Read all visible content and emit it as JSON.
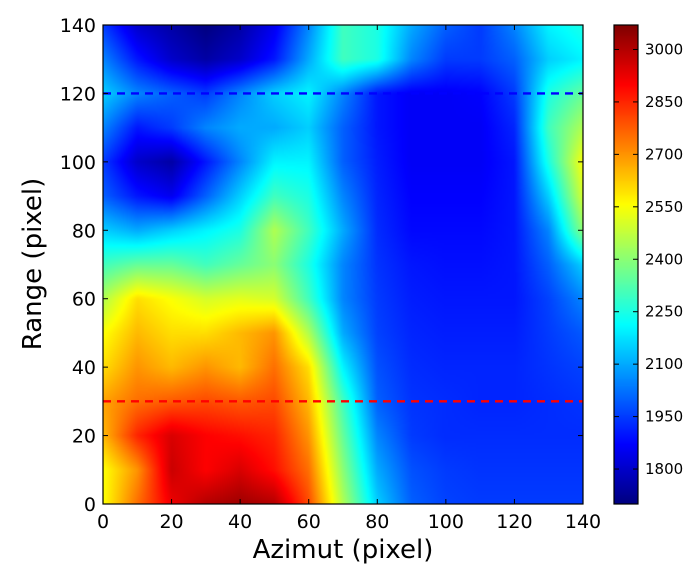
{
  "chart_data": {
    "type": "heatmap",
    "title": "",
    "xlabel": "Azimut (pixel)",
    "ylabel": "Range (pixel)",
    "xlim": [
      0,
      140
    ],
    "ylim": [
      0,
      140
    ],
    "xticks": [
      "0",
      "20",
      "40",
      "60",
      "80",
      "100",
      "120",
      "140"
    ],
    "yticks": [
      "0",
      "20",
      "40",
      "60",
      "80",
      "100",
      "120",
      "140"
    ],
    "colormap": "jet",
    "color_range": [
      1700,
      3070
    ],
    "colorbar_ticks": [
      "1800",
      "1950",
      "2100",
      "2250",
      "2400",
      "2550",
      "2700",
      "2850",
      "3000"
    ],
    "grid": false,
    "reference_lines": [
      {
        "y": 120,
        "color": "#0000ff",
        "style": "dashed"
      },
      {
        "y": 30,
        "color": "#ff0000",
        "style": "dashed"
      }
    ],
    "grid_x": [
      0,
      10,
      20,
      30,
      40,
      50,
      60,
      70,
      80,
      90,
      100,
      110,
      120,
      130,
      140
    ],
    "grid_y": [
      0,
      10,
      20,
      30,
      40,
      50,
      60,
      70,
      80,
      90,
      100,
      110,
      120,
      130,
      140
    ],
    "values": [
      [
        2550,
        2750,
        2920,
        3000,
        3030,
        3000,
        2800,
        2450,
        2150,
        2000,
        1960,
        1950,
        1950,
        1950,
        1950
      ],
      [
        2550,
        2700,
        2970,
        2900,
        2950,
        2880,
        2750,
        2400,
        2100,
        1980,
        1950,
        1940,
        1940,
        1940,
        1940
      ],
      [
        2650,
        2850,
        2950,
        2900,
        2880,
        2850,
        2700,
        2350,
        2050,
        1950,
        1930,
        1930,
        1930,
        1930,
        1930
      ],
      [
        2680,
        2750,
        2780,
        2800,
        2780,
        2800,
        2650,
        2300,
        2000,
        1940,
        1930,
        1920,
        1920,
        1930,
        1940
      ],
      [
        2600,
        2700,
        2650,
        2700,
        2650,
        2750,
        2600,
        2200,
        1980,
        1930,
        1920,
        1920,
        1920,
        1940,
        1960
      ],
      [
        2550,
        2650,
        2600,
        2600,
        2650,
        2700,
        2450,
        2100,
        1960,
        1920,
        1910,
        1910,
        1910,
        1950,
        1990
      ],
      [
        2450,
        2600,
        2550,
        2500,
        2520,
        2500,
        2300,
        2050,
        1950,
        1910,
        1900,
        1900,
        1900,
        1960,
        2050
      ],
      [
        2300,
        2350,
        2350,
        2300,
        2350,
        2400,
        2250,
        2050,
        1940,
        1900,
        1890,
        1890,
        1900,
        2000,
        2150
      ],
      [
        2150,
        2100,
        2150,
        2200,
        2250,
        2450,
        2300,
        2100,
        1930,
        1880,
        1880,
        1880,
        1900,
        2050,
        2400
      ],
      [
        2000,
        1900,
        1850,
        2000,
        2150,
        2300,
        2250,
        2050,
        1920,
        1870,
        1870,
        1870,
        1900,
        2150,
        2500
      ],
      [
        1950,
        1800,
        1750,
        1900,
        2050,
        2200,
        2200,
        2000,
        1910,
        1860,
        1860,
        1860,
        1900,
        2250,
        2550
      ],
      [
        2050,
        1900,
        1950,
        2050,
        2100,
        2100,
        2150,
        2000,
        1900,
        1860,
        1860,
        1860,
        1920,
        2300,
        2450
      ],
      [
        2150,
        2050,
        2000,
        1950,
        2050,
        2150,
        2200,
        2050,
        1900,
        1860,
        1860,
        1870,
        1950,
        2250,
        2350
      ],
      [
        2050,
        1900,
        1800,
        1750,
        1800,
        1900,
        2100,
        2300,
        2250,
        2050,
        1950,
        1950,
        2000,
        2150,
        2200
      ],
      [
        1950,
        1800,
        1750,
        1700,
        1750,
        1850,
        2050,
        2300,
        2250,
        2100,
        2000,
        1950,
        2050,
        2200,
        2250
      ]
    ]
  }
}
